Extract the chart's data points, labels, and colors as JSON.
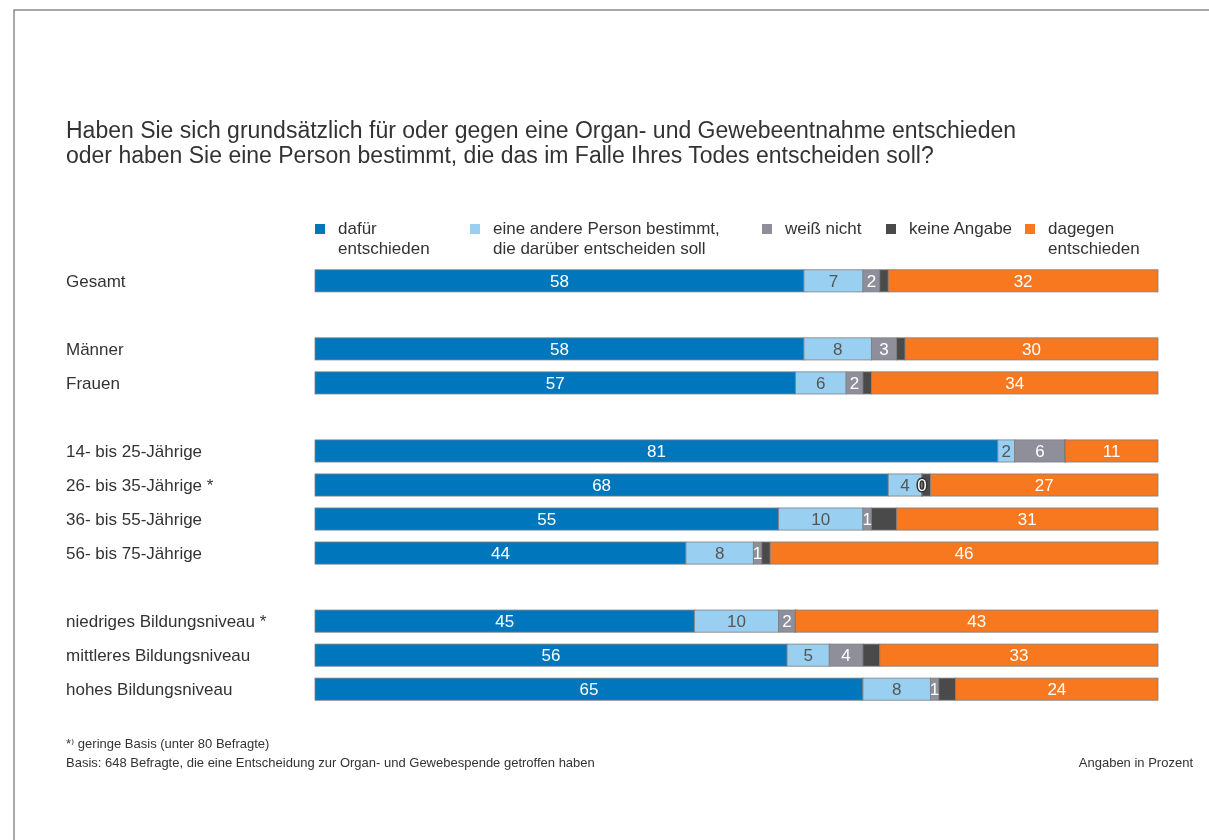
{
  "chart_data": {
    "type": "bar",
    "orientation": "horizontal",
    "stacked": true,
    "title": "Haben Sie sich grundsätzlich für oder gegen eine Organ- und Gewebeentnahme entschieden\noder haben Sie eine Person bestimmt, die das im Falle Ihres Todes entscheiden soll?",
    "categories": [
      "Gesamt",
      null,
      "Männer",
      "Frauen",
      null,
      "14- bis 25-Jährige",
      "26- bis 35-Jährige *",
      "36- bis 55-Jährige",
      "56- bis 75-Jährige",
      null,
      "niedriges Bildungsniveau *",
      "mittleres Bildungsniveau",
      "hohes Bildungsniveau"
    ],
    "series": [
      {
        "name": "dafür\nentschieden",
        "color": "#0077bd",
        "values": [
          58,
          null,
          58,
          57,
          null,
          81,
          68,
          55,
          44,
          null,
          45,
          56,
          65
        ],
        "value_labels": [
          "58",
          null,
          "58",
          "57",
          null,
          "81",
          "68",
          "55",
          "44",
          null,
          "45",
          "56",
          "65"
        ]
      },
      {
        "name": "eine andere Person bestimmt,\ndie darüber entscheiden soll",
        "color": "#99cff0",
        "values": [
          7,
          null,
          8,
          6,
          null,
          2,
          4,
          10,
          8,
          null,
          10,
          5,
          8
        ],
        "value_labels": [
          "7",
          null,
          "8",
          "6",
          null,
          "2",
          "4",
          "10",
          "8",
          null,
          "10",
          "5",
          "8"
        ]
      },
      {
        "name": "weiß nicht",
        "color": "#8e8f9b",
        "values": [
          2,
          null,
          3,
          2,
          null,
          6,
          0,
          1,
          1,
          null,
          2,
          4,
          1
        ],
        "value_labels": [
          "2",
          null,
          "3",
          "2",
          null,
          "6",
          "0",
          "1",
          "1",
          null,
          "2",
          "4",
          "1"
        ]
      },
      {
        "name": "keine Angabe",
        "color": "#4a4a4a",
        "values": [
          1,
          null,
          1,
          1,
          null,
          0,
          1,
          3,
          1,
          null,
          0,
          2,
          2
        ],
        "value_labels": [
          null,
          null,
          null,
          null,
          null,
          null,
          null,
          null,
          null,
          null,
          null,
          null,
          null
        ]
      },
      {
        "name": "dagegen\nentschieden",
        "color": "#f7781e",
        "values": [
          32,
          null,
          30,
          34,
          null,
          11,
          27,
          31,
          46,
          null,
          43,
          33,
          24
        ],
        "value_labels": [
          "32",
          null,
          "30",
          "34",
          null,
          "11",
          "27",
          "31",
          "46",
          null,
          "43",
          "33",
          "24"
        ]
      }
    ],
    "xlim": [
      0,
      100
    ],
    "tick_labels": false,
    "legend": "top",
    "annotations": [
      "*⁾ geringe Basis (unter 80 Befragte)",
      "Basis: 648 Befragte, die eine Entscheidung zur Organ- und Gewebespende getroffen haben",
      "Angaben in Prozent"
    ]
  }
}
